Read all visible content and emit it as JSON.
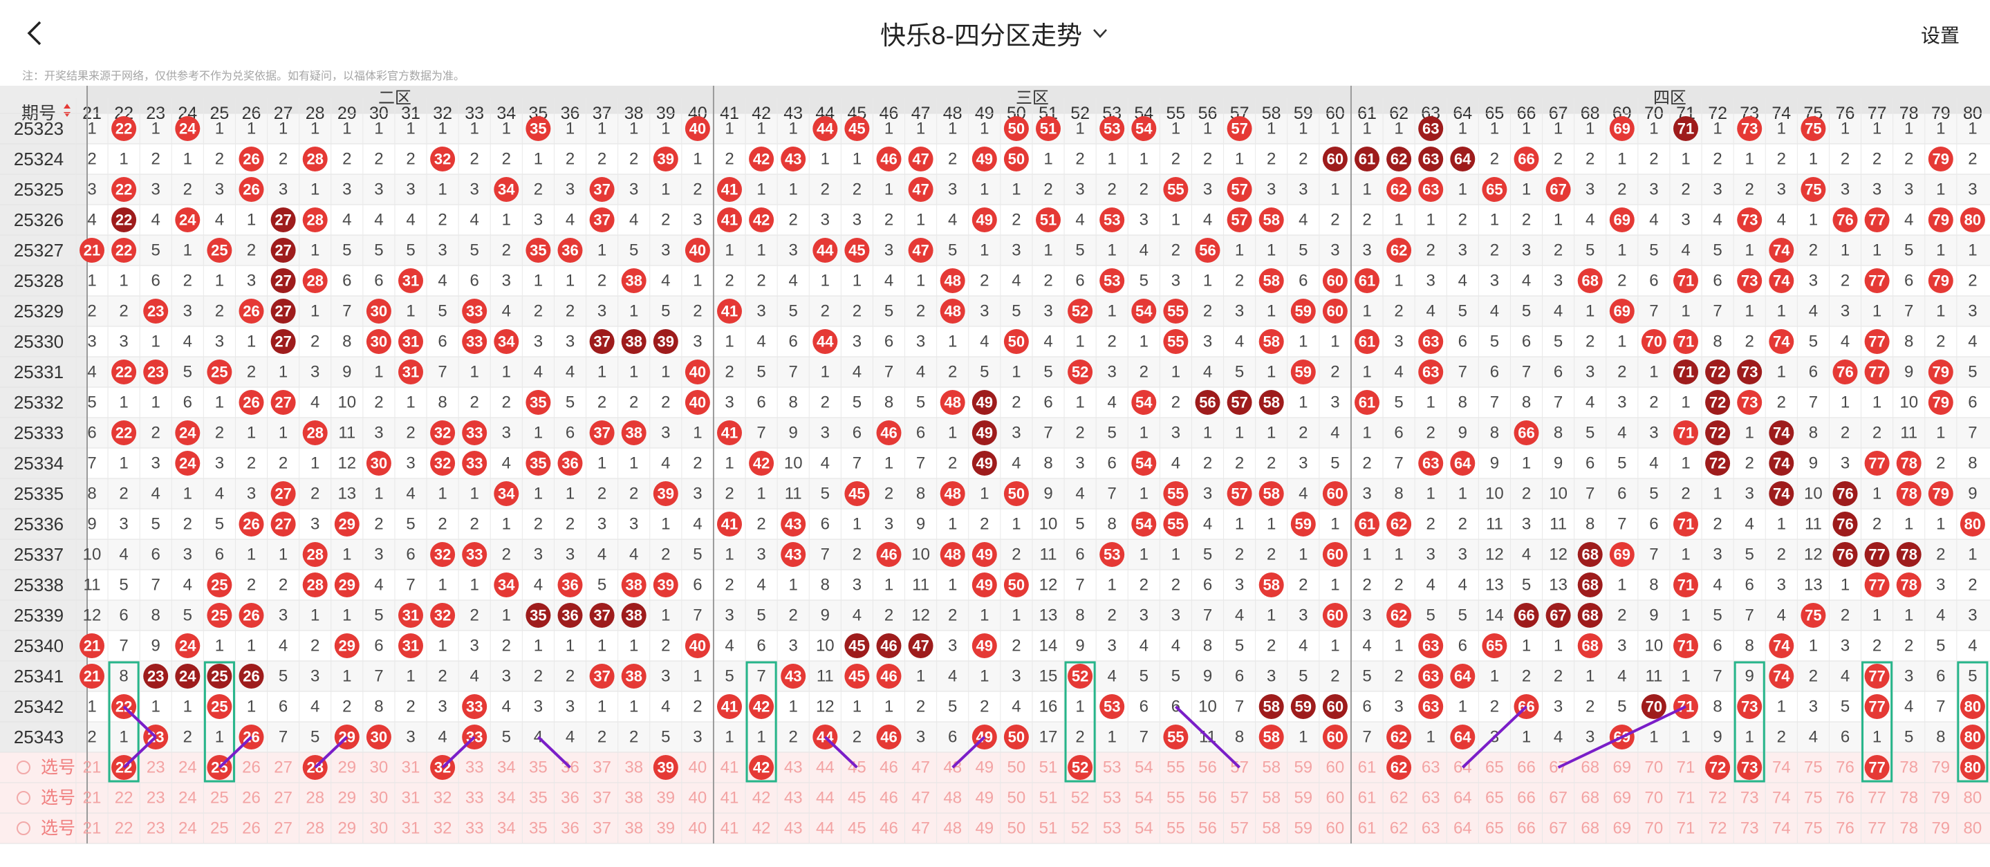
{
  "header": {
    "title": "快乐8-四分区走势",
    "settings_label": "设置",
    "back_icon": "chevron-left-icon",
    "dropdown_icon": "chevron-down-icon"
  },
  "note": "注：开奖结果来源于网络，仅供参考不作为兑奖依据。如有疑问，以福体彩官方数据为准。",
  "table": {
    "period_header": "期号",
    "sort_icon": "sort-arrows-icon",
    "zones": [
      "二区",
      "三区",
      "四区"
    ],
    "columns_start": 21,
    "columns_end": 80,
    "select_label": "选号",
    "select_rows": 3,
    "first_select_hits": [
      22,
      25,
      28,
      32,
      39,
      42,
      52,
      62,
      72,
      73,
      77,
      80
    ],
    "colors": {
      "hit": "#e53935",
      "hit_dark": "#9e1c1c",
      "highlight_box": "#27b58a",
      "link_line": "#7a1ec8",
      "zone_header_bg": "#e6e6e6",
      "select_bg": "#fdeeee"
    },
    "rows": [
      {
        "period": "25323",
        "hits": [
          22,
          24,
          35,
          40,
          44,
          45,
          50,
          51,
          53,
          54,
          57,
          63,
          69,
          71,
          73,
          75
        ]
      },
      {
        "period": "25324",
        "hits": [
          26,
          28,
          32,
          39,
          42,
          43,
          46,
          47,
          49,
          50,
          60,
          61,
          62,
          63,
          64,
          66,
          79
        ]
      },
      {
        "period": "25325",
        "hits": [
          22,
          26,
          34,
          37,
          41,
          47,
          55,
          57,
          62,
          63,
          65,
          67,
          75
        ]
      },
      {
        "period": "25326",
        "hits": [
          22,
          24,
          27,
          28,
          37,
          41,
          42,
          49,
          51,
          53,
          57,
          58,
          69,
          73,
          76,
          77,
          79,
          80
        ]
      },
      {
        "period": "25327",
        "hits": [
          21,
          22,
          25,
          27,
          35,
          36,
          40,
          44,
          45,
          47,
          56,
          62,
          74
        ]
      },
      {
        "period": "25328",
        "hits": [
          27,
          28,
          31,
          38,
          48,
          53,
          58,
          60,
          61,
          68,
          71,
          73,
          74,
          77,
          79
        ]
      },
      {
        "period": "25329",
        "hits": [
          23,
          26,
          27,
          30,
          33,
          41,
          48,
          52,
          54,
          55,
          59,
          60,
          69
        ]
      },
      {
        "period": "25330",
        "hits": [
          27,
          30,
          31,
          33,
          34,
          37,
          38,
          39,
          44,
          50,
          55,
          58,
          61,
          63,
          70,
          71,
          74,
          77
        ]
      },
      {
        "period": "25331",
        "hits": [
          22,
          23,
          25,
          31,
          40,
          52,
          59,
          63,
          71,
          72,
          73,
          76,
          77,
          79
        ]
      },
      {
        "period": "25332",
        "hits": [
          26,
          27,
          35,
          40,
          48,
          49,
          54,
          56,
          57,
          58,
          61,
          72,
          73,
          79
        ]
      },
      {
        "period": "25333",
        "hits": [
          22,
          24,
          28,
          32,
          33,
          37,
          38,
          41,
          46,
          49,
          66,
          71,
          72,
          74
        ]
      },
      {
        "period": "25334",
        "hits": [
          24,
          30,
          32,
          33,
          35,
          36,
          42,
          49,
          54,
          63,
          64,
          72,
          74,
          77,
          78
        ]
      },
      {
        "period": "25335",
        "hits": [
          27,
          34,
          39,
          45,
          48,
          50,
          55,
          57,
          58,
          60,
          74,
          76,
          78,
          79
        ]
      },
      {
        "period": "25336",
        "hits": [
          26,
          27,
          29,
          41,
          43,
          54,
          55,
          59,
          61,
          62,
          71,
          76,
          80
        ]
      },
      {
        "period": "25337",
        "hits": [
          28,
          32,
          33,
          43,
          46,
          48,
          49,
          53,
          60,
          68,
          69,
          76,
          77,
          78
        ]
      },
      {
        "period": "25338",
        "hits": [
          25,
          28,
          29,
          34,
          36,
          38,
          39,
          49,
          50,
          58,
          68,
          71,
          77,
          78
        ]
      },
      {
        "period": "25339",
        "hits": [
          25,
          26,
          31,
          32,
          35,
          36,
          37,
          38,
          60,
          62,
          66,
          67,
          68,
          75
        ]
      },
      {
        "period": "25340",
        "hits": [
          21,
          24,
          29,
          31,
          40,
          45,
          46,
          47,
          49,
          63,
          65,
          68,
          71,
          74
        ]
      },
      {
        "period": "25341",
        "hits": [
          21,
          23,
          24,
          25,
          26,
          37,
          38,
          43,
          45,
          46,
          52,
          63,
          64,
          74,
          77
        ]
      },
      {
        "period": "25342",
        "hits": [
          22,
          25,
          33,
          41,
          42,
          53,
          58,
          59,
          60,
          63,
          66,
          70,
          71,
          73,
          77,
          80
        ]
      },
      {
        "period": "25343",
        "hits": [
          23,
          26,
          29,
          30,
          33,
          44,
          46,
          49,
          50,
          55,
          58,
          60,
          62,
          64,
          69,
          80
        ]
      }
    ],
    "highlight_boxes": [
      22,
      25,
      42,
      52,
      73,
      77,
      80
    ],
    "link_lines": [
      {
        "from": {
          "row": "25342",
          "col": 22
        },
        "to": {
          "row": "25343",
          "col": 23
        }
      },
      {
        "from": {
          "row": "25343",
          "col": 23
        },
        "to": {
          "row": "选号",
          "col": 22
        }
      },
      {
        "from": {
          "row": "25343",
          "col": 26
        },
        "to": {
          "row": "选号",
          "col": 25
        }
      },
      {
        "from": {
          "row": "25343",
          "col": 29
        },
        "to": {
          "row": "选号",
          "col": 28
        }
      },
      {
        "from": {
          "row": "25343",
          "col": 33
        },
        "to": {
          "row": "选号",
          "col": 32
        }
      },
      {
        "from": {
          "row": "25343",
          "col": 35
        },
        "to": {
          "row": "选号",
          "col": 36
        }
      },
      {
        "from": {
          "row": "25343",
          "col": 44
        },
        "to": {
          "row": "选号",
          "col": 45
        }
      },
      {
        "from": {
          "row": "25343",
          "col": 49
        },
        "to": {
          "row": "选号",
          "col": 48
        }
      },
      {
        "from": {
          "row": "25342",
          "col": 55
        },
        "to": {
          "row": "选号",
          "col": 57
        }
      },
      {
        "from": {
          "row": "25342",
          "col": 66
        },
        "to": {
          "row": "选号",
          "col": 64
        }
      },
      {
        "from": {
          "row": "25342",
          "col": 71
        },
        "to": {
          "row": "选号",
          "col": 67
        }
      }
    ],
    "dark_cells": [
      {
        "row": "25323",
        "cols": [
          63,
          71
        ]
      },
      {
        "row": "25324",
        "cols": [
          60,
          61,
          62,
          63,
          64
        ]
      },
      {
        "row": "25326",
        "cols": [
          22,
          27
        ]
      },
      {
        "row": "25327",
        "cols": [
          27
        ]
      },
      {
        "row": "25328",
        "cols": [
          27
        ]
      },
      {
        "row": "25329",
        "cols": [
          27
        ]
      },
      {
        "row": "25330",
        "cols": [
          27,
          37,
          38,
          39
        ]
      },
      {
        "row": "25331",
        "cols": [
          71,
          72,
          73
        ]
      },
      {
        "row": "25332",
        "cols": [
          49,
          56,
          57,
          58,
          72
        ]
      },
      {
        "row": "25333",
        "cols": [
          49,
          72,
          74
        ]
      },
      {
        "row": "25334",
        "cols": [
          49,
          72,
          74
        ]
      },
      {
        "row": "25335",
        "cols": [
          74,
          76
        ]
      },
      {
        "row": "25336",
        "cols": [
          76
        ]
      },
      {
        "row": "25337",
        "cols": [
          68,
          76,
          77,
          78
        ]
      },
      {
        "row": "25338",
        "cols": [
          68
        ]
      },
      {
        "row": "25339",
        "cols": [
          35,
          36,
          37,
          38,
          66,
          67,
          68
        ]
      },
      {
        "row": "25340",
        "cols": [
          45,
          46,
          47
        ]
      },
      {
        "row": "25341",
        "cols": [
          23,
          24,
          25,
          26
        ]
      },
      {
        "row": "25342",
        "cols": [
          58,
          59,
          60,
          70
        ]
      }
    ]
  }
}
